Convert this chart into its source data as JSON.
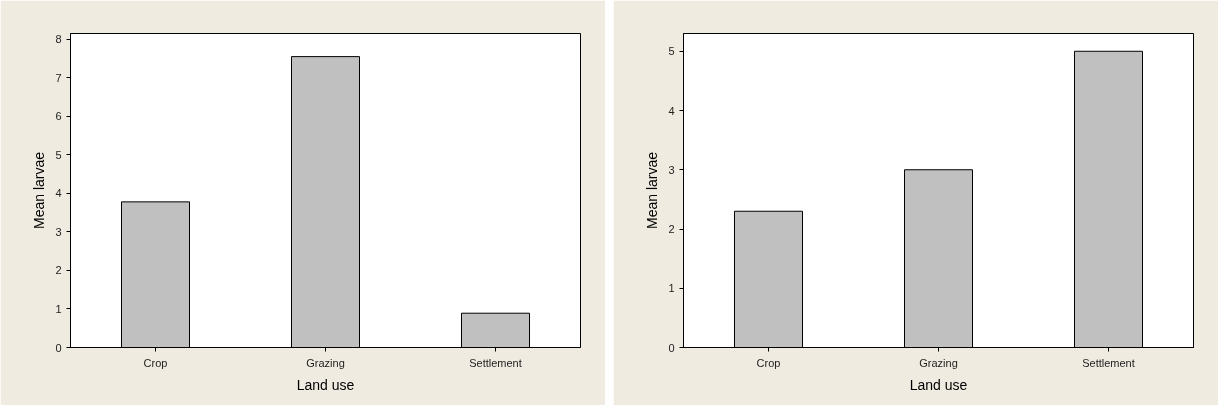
{
  "chart_data": [
    {
      "type": "bar",
      "xlabel": "Land use",
      "ylabel": "Mean larvae",
      "categories": [
        "Crop",
        "Grazing",
        "Settlement"
      ],
      "values": [
        3.78,
        7.55,
        0.89
      ],
      "color": "#c0c0c0",
      "ylim": [
        0,
        8.15
      ],
      "yticks": [
        0,
        1,
        2,
        3,
        4,
        5,
        6,
        7,
        8
      ],
      "grid": false
    },
    {
      "type": "bar",
      "xlabel": "Land use",
      "ylabel": "Mean larvae",
      "categories": [
        "Crop",
        "Grazing",
        "Settlement"
      ],
      "values": [
        2.3,
        3.0,
        5.0
      ],
      "color": "#c0c0c0",
      "ylim": [
        0,
        5.3
      ],
      "yticks": [
        0,
        1,
        2,
        3,
        4,
        5
      ],
      "grid": false
    }
  ]
}
